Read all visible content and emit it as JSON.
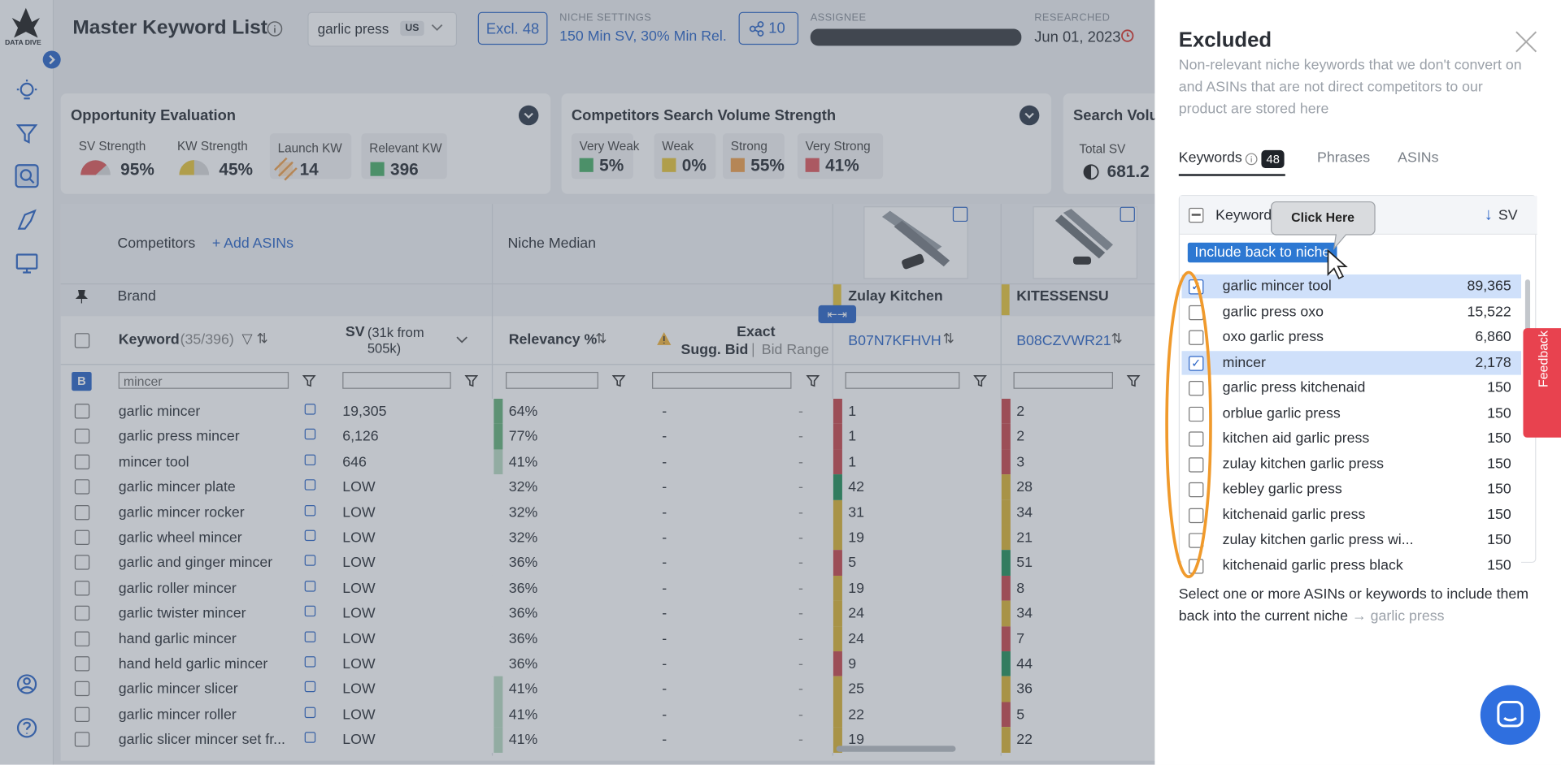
{
  "sidebar": {
    "logo": "DATA DIVE"
  },
  "header": {
    "title": "Master Keyword List",
    "search": "garlic press",
    "market": "US",
    "excluded": "Excl. 48",
    "niche_settings_label": "NICHE SETTINGS",
    "niche_settings": "150 Min SV, 30% Min Rel.",
    "share_count": "10",
    "assignee_label": "ASSIGNEE",
    "researched_label": "RESEARCHED",
    "researched": "Jun 01, 2023"
  },
  "cards": [
    {
      "title": "Opportunity Evaluation",
      "items": [
        {
          "label": "SV Strength",
          "value": "95%"
        },
        {
          "label": "KW Strength",
          "value": "45%"
        },
        {
          "label": "Launch KW",
          "value": "14"
        },
        {
          "label": "Relevant KW",
          "value": "396"
        }
      ]
    },
    {
      "title": "Competitors Search Volume Strength",
      "items": [
        {
          "label": "Very Weak",
          "value": "5%",
          "color": "#4caf6a"
        },
        {
          "label": "Weak",
          "value": "0%",
          "color": "#e8c53a"
        },
        {
          "label": "Strong",
          "value": "55%",
          "color": "#f0a04b"
        },
        {
          "label": "Very Strong",
          "value": "41%",
          "color": "#e0595e"
        }
      ]
    },
    {
      "title": "Search Volu",
      "items": [
        {
          "label": "Total SV",
          "value": "681.2"
        }
      ]
    }
  ],
  "table": {
    "competitors": "Competitors",
    "add_asins": "+ Add ASINs",
    "niche_median": "Niche Median",
    "brand": "Brand",
    "brands": [
      "Zulay Kitchen",
      "KITESSENSU"
    ],
    "col_keyword": "Keyword",
    "col_keyword_count": "(35/396)",
    "col_sv": "SV",
    "col_sv_note": "(31k from 505k)",
    "col_relevancy": "Relevancy %",
    "col_exact": "Exact",
    "col_sugg_bid": "Sugg. Bid",
    "col_bid_range": "Bid Range",
    "asins": [
      "B07N7KFHVH",
      "B08CZVWR21"
    ],
    "badge": "B",
    "filter": "mincer",
    "rows": [
      {
        "keyword": "garlic mincer",
        "sv": "19,305",
        "relevancy": "64%",
        "rel_color": "#66b27a",
        "bid": "-",
        "bid_range": "-",
        "ranks": [
          "1",
          "2"
        ],
        "rank_colors": [
          "#c9494d",
          "#c9494d"
        ]
      },
      {
        "keyword": "garlic press mincer",
        "sv": "6,126",
        "relevancy": "77%",
        "rel_color": "#66b27a",
        "bid": "-",
        "bid_range": "-",
        "ranks": [
          "1",
          "2"
        ],
        "rank_colors": [
          "#c9494d",
          "#c9494d"
        ]
      },
      {
        "keyword": "mincer tool",
        "sv": "646",
        "relevancy": "41%",
        "rel_color": "#b9dcc2",
        "bid": "-",
        "bid_range": "-",
        "ranks": [
          "1",
          "3"
        ],
        "rank_colors": [
          "#c9494d",
          "#c9494d"
        ]
      },
      {
        "keyword": "garlic mincer plate",
        "sv": "LOW",
        "relevancy": "32%",
        "rel_color": null,
        "bid": "-",
        "bid_range": "-",
        "ranks": [
          "42",
          "28"
        ],
        "rank_colors": [
          "#23905a",
          "#dcb534"
        ]
      },
      {
        "keyword": "garlic mincer rocker",
        "sv": "LOW",
        "relevancy": "32%",
        "rel_color": null,
        "bid": "-",
        "bid_range": "-",
        "ranks": [
          "31",
          "34"
        ],
        "rank_colors": [
          "#dcb534",
          "#dcb534"
        ]
      },
      {
        "keyword": "garlic wheel mincer",
        "sv": "LOW",
        "relevancy": "32%",
        "rel_color": null,
        "bid": "-",
        "bid_range": "-",
        "ranks": [
          "19",
          "21"
        ],
        "rank_colors": [
          "#dcb534",
          "#dcb534"
        ]
      },
      {
        "keyword": "garlic and ginger mincer",
        "sv": "LOW",
        "relevancy": "36%",
        "rel_color": null,
        "bid": "-",
        "bid_range": "-",
        "ranks": [
          "5",
          "51"
        ],
        "rank_colors": [
          "#c9494d",
          "#23905a"
        ]
      },
      {
        "keyword": "garlic roller mincer",
        "sv": "LOW",
        "relevancy": "36%",
        "rel_color": null,
        "bid": "-",
        "bid_range": "-",
        "ranks": [
          "19",
          "8"
        ],
        "rank_colors": [
          "#dcb534",
          "#c9494d"
        ]
      },
      {
        "keyword": "garlic twister mincer",
        "sv": "LOW",
        "relevancy": "36%",
        "rel_color": null,
        "bid": "-",
        "bid_range": "-",
        "ranks": [
          "24",
          "34"
        ],
        "rank_colors": [
          "#dcb534",
          "#dcb534"
        ]
      },
      {
        "keyword": "hand garlic mincer",
        "sv": "LOW",
        "relevancy": "36%",
        "rel_color": null,
        "bid": "-",
        "bid_range": "-",
        "ranks": [
          "24",
          "7"
        ],
        "rank_colors": [
          "#dcb534",
          "#c9494d"
        ]
      },
      {
        "keyword": "hand held garlic mincer",
        "sv": "LOW",
        "relevancy": "36%",
        "rel_color": null,
        "bid": "-",
        "bid_range": "-",
        "ranks": [
          "9",
          "44"
        ],
        "rank_colors": [
          "#c9494d",
          "#23905a"
        ]
      },
      {
        "keyword": "garlic mincer slicer",
        "sv": "LOW",
        "relevancy": "41%",
        "rel_color": "#b9dcc2",
        "bid": "-",
        "bid_range": "-",
        "ranks": [
          "25",
          "36"
        ],
        "rank_colors": [
          "#dcb534",
          "#dcb534"
        ]
      },
      {
        "keyword": "garlic mincer roller",
        "sv": "LOW",
        "relevancy": "41%",
        "rel_color": "#b9dcc2",
        "bid": "-",
        "bid_range": "-",
        "ranks": [
          "22",
          "5"
        ],
        "rank_colors": [
          "#dcb534",
          "#c9494d"
        ]
      },
      {
        "keyword": "garlic slicer mincer set fr...",
        "sv": "LOW",
        "relevancy": "41%",
        "rel_color": "#b9dcc2",
        "bid": "-",
        "bid_range": "-",
        "ranks": [
          "19",
          "22"
        ],
        "rank_colors": [
          "#dcb534",
          "#dcb534"
        ]
      }
    ]
  },
  "panel": {
    "title": "Excluded",
    "description": "Non-relevant niche keywords that we don't convert on and ASINs that are not direct competitors to our product are stored here",
    "tabs": [
      "Keywords",
      "Phrases",
      "ASINs"
    ],
    "keywords_count": "48",
    "list_header_keyword": "Keyword",
    "list_header_sv": "SV",
    "include_button": "Include back to niche",
    "tooltip": "Click Here",
    "items": [
      {
        "keyword": "garlic mincer tool",
        "sv": "89,365",
        "checked": true
      },
      {
        "keyword": "garlic press oxo",
        "sv": "15,522",
        "checked": false
      },
      {
        "keyword": "oxo garlic press",
        "sv": "6,860",
        "checked": false
      },
      {
        "keyword": "mincer",
        "sv": "2,178",
        "checked": true
      },
      {
        "keyword": "garlic press kitchenaid",
        "sv": "150",
        "checked": false
      },
      {
        "keyword": "orblue garlic press",
        "sv": "150",
        "checked": false
      },
      {
        "keyword": "kitchen aid garlic press",
        "sv": "150",
        "checked": false
      },
      {
        "keyword": "zulay kitchen garlic press",
        "sv": "150",
        "checked": false
      },
      {
        "keyword": "kebley garlic press",
        "sv": "150",
        "checked": false
      },
      {
        "keyword": "kitchenaid garlic press",
        "sv": "150",
        "checked": false
      },
      {
        "keyword": "zulay kitchen garlic press wi...",
        "sv": "150",
        "checked": false
      },
      {
        "keyword": "kitchenaid garlic press black",
        "sv": "150",
        "checked": false
      }
    ],
    "footer": "Select one or more ASINs or keywords to include them back into the current niche",
    "footer_niche": "→ garlic press",
    "feedback": "Feedback"
  }
}
